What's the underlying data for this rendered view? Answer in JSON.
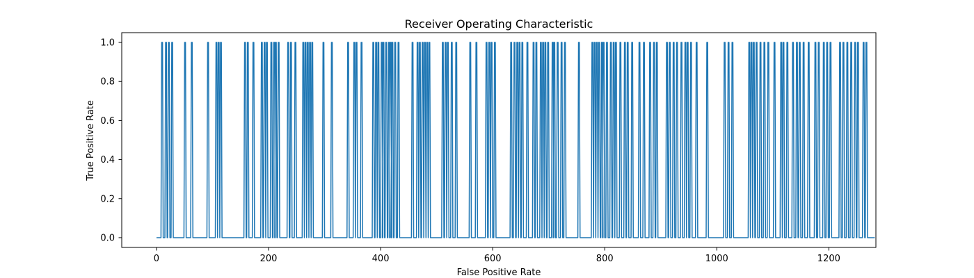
{
  "chart_data": {
    "type": "line",
    "title": "Receiver Operating Characteristic",
    "xlabel": "False Positive Rate",
    "ylabel": "True Positive Rate",
    "xlim": [
      -62,
      1284
    ],
    "ylim": [
      -0.05,
      1.05
    ],
    "grid": false,
    "x_ticks": [
      0,
      200,
      400,
      600,
      800,
      1000,
      1200
    ],
    "x_tick_labels": [
      "0",
      "200",
      "400",
      "600",
      "800",
      "1000",
      "1200"
    ],
    "y_ticks": [
      0.0,
      0.2,
      0.4,
      0.6,
      0.8,
      1.0
    ],
    "y_tick_labels": [
      "0.0",
      "0.2",
      "0.4",
      "0.6",
      "0.8",
      "1.0"
    ],
    "series": [
      {
        "color": "#1f77b4",
        "x_start": 0,
        "x_end": 1282,
        "baseline": 0,
        "spike_value": 1,
        "spike_x": [
          10,
          17,
          22,
          28,
          51,
          63,
          92,
          107,
          111,
          115,
          158,
          163,
          173,
          188,
          193,
          197,
          205,
          210,
          213,
          218,
          235,
          240,
          248,
          262,
          266,
          270,
          274,
          278,
          298,
          313,
          342,
          353,
          357,
          366,
          387,
          392,
          396,
          402,
          405,
          410,
          415,
          418,
          421,
          426,
          432,
          457,
          466,
          470,
          475,
          479,
          483,
          487,
          511,
          516,
          520,
          527,
          535,
          560,
          571,
          589,
          594,
          598,
          604,
          633,
          639,
          644,
          648,
          653,
          662,
          673,
          678,
          686,
          690,
          694,
          699,
          707,
          710,
          716,
          723,
          729,
          754,
          778,
          782,
          786,
          790,
          795,
          798,
          804,
          811,
          816,
          820,
          828,
          836,
          841,
          849,
          862,
          870,
          881,
          888,
          893,
          911,
          916,
          923,
          929,
          937,
          944,
          948,
          954,
          964,
          983,
          1014,
          1021,
          1028,
          1058,
          1062,
          1066,
          1071,
          1078,
          1085,
          1092,
          1103,
          1115,
          1119,
          1126,
          1136,
          1143,
          1148,
          1155,
          1164,
          1176,
          1182,
          1191,
          1197,
          1203,
          1220,
          1226,
          1233,
          1240,
          1247,
          1252,
          1262,
          1267
        ]
      }
    ]
  }
}
